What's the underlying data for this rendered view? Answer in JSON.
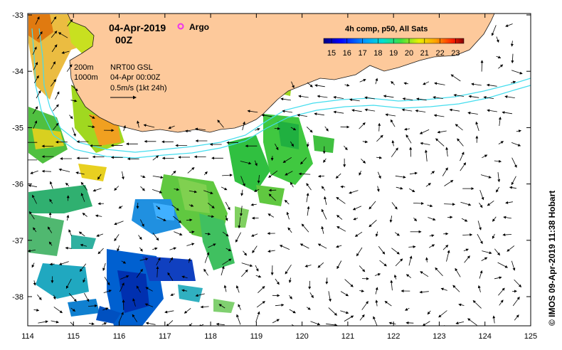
{
  "header": {
    "date": "04-Apr-2019",
    "time": "00Z",
    "argo_label": "Argo"
  },
  "legend": {
    "depth_200": "200m",
    "depth_1000": "1000m",
    "product": "NRT00 GSL",
    "product_time": "04-Apr 00:00Z",
    "scale_text": "0.5m/s (1kt 24h)"
  },
  "colorbar": {
    "title": "4h comp, p50, All Sats",
    "ticks": [
      "15",
      "16",
      "17",
      "18",
      "19",
      "20",
      "21",
      "22",
      "23"
    ],
    "colors": [
      "#00007f",
      "#0000ff",
      "#007fff",
      "#00ffff",
      "#7fff7f",
      "#ffff00",
      "#ff7f00",
      "#ff0000",
      "#7f0000"
    ]
  },
  "axes": {
    "x_ticks": [
      "114",
      "115",
      "116",
      "117",
      "118",
      "119",
      "120",
      "121",
      "122",
      "123",
      "124",
      "125"
    ],
    "y_ticks": [
      "-33",
      "-34",
      "-35",
      "-36",
      "-37",
      "-38"
    ]
  },
  "credit": "© IMOS 09-Apr-2019 11:38 Hobart",
  "colors": {
    "land": "#fdc99b",
    "isobath": "#44ddee",
    "argo": "#ee33ee"
  }
}
